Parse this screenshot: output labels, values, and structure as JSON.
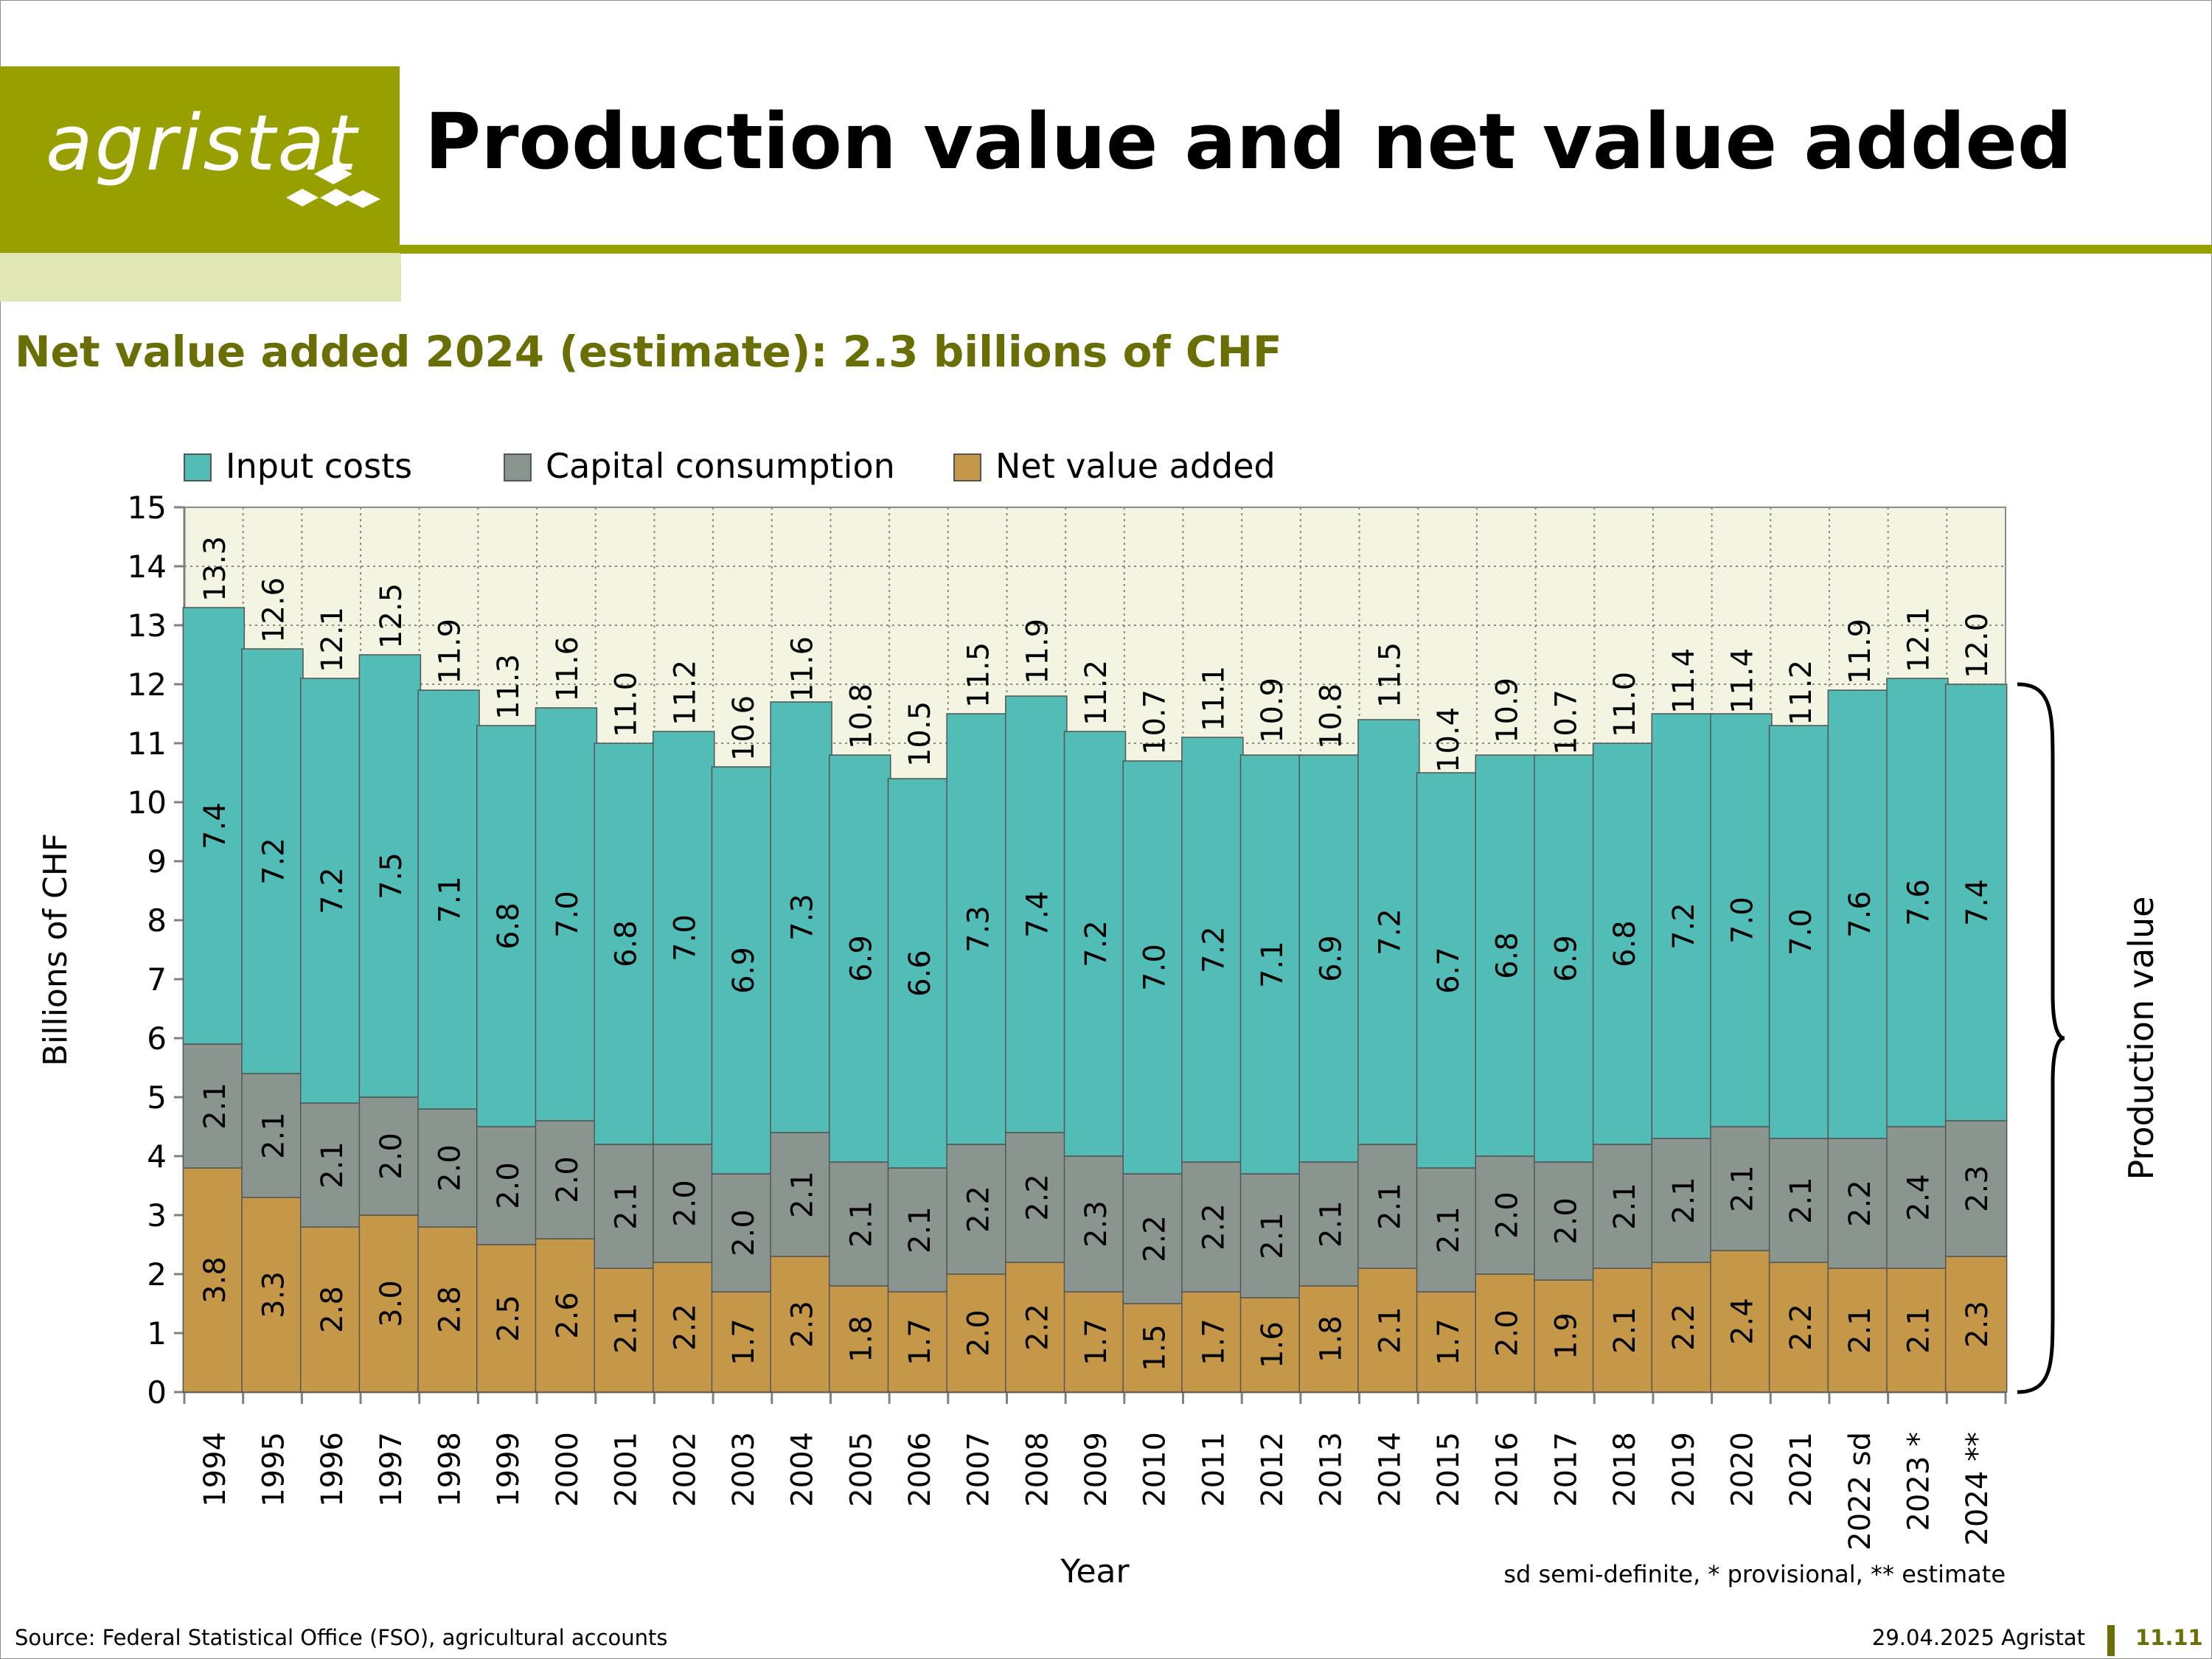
{
  "header": {
    "logo_text": "agristat",
    "title": "Production value and net value added",
    "subtitle": "Net value added 2024 (estimate): 2.3 billions of CHF"
  },
  "colors": {
    "brand": "#98a000",
    "brand_dark": "#6a6f05",
    "brand_pale": "#e0e5b4",
    "plot_background": "#f4f4e2",
    "input_costs": "#52bcb7",
    "capital_consumption": "#8b9590",
    "net_value_added": "#c59748"
  },
  "chart_data": {
    "type": "bar",
    "stacked": true,
    "ylabel": "Billions of CHF",
    "xlabel": "Year",
    "ylim": [
      0,
      15
    ],
    "yticks": [
      0,
      1,
      2,
      3,
      4,
      5,
      6,
      7,
      8,
      9,
      10,
      11,
      12,
      13,
      14,
      15
    ],
    "grid": true,
    "legend_position": "top",
    "categories": [
      "1994",
      "1995",
      "1996",
      "1997",
      "1998",
      "1999",
      "2000",
      "2001",
      "2002",
      "2003",
      "2004",
      "2005",
      "2006",
      "2007",
      "2008",
      "2009",
      "2010",
      "2011",
      "2012",
      "2013",
      "2014",
      "2015",
      "2016",
      "2017",
      "2018",
      "2019",
      "2020",
      "2021",
      "2022 sd",
      "2023 *",
      "2024 **"
    ],
    "series": [
      {
        "name": "Net value added",
        "values": [
          3.8,
          3.3,
          2.8,
          3.0,
          2.8,
          2.5,
          2.6,
          2.1,
          2.2,
          1.7,
          2.3,
          1.8,
          1.7,
          2.0,
          2.2,
          1.7,
          1.5,
          1.7,
          1.6,
          1.8,
          2.1,
          1.7,
          2.0,
          1.9,
          2.1,
          2.2,
          2.4,
          2.2,
          2.1,
          2.1,
          2.3
        ]
      },
      {
        "name": "Capital consumption",
        "values": [
          2.1,
          2.1,
          2.1,
          2.0,
          2.0,
          2.0,
          2.0,
          2.1,
          2.0,
          2.0,
          2.1,
          2.1,
          2.1,
          2.2,
          2.2,
          2.3,
          2.2,
          2.2,
          2.1,
          2.1,
          2.1,
          2.1,
          2.0,
          2.0,
          2.1,
          2.1,
          2.1,
          2.1,
          2.2,
          2.4,
          2.3
        ]
      },
      {
        "name": "Input costs",
        "values": [
          7.4,
          7.2,
          7.2,
          7.5,
          7.1,
          6.8,
          7.0,
          6.8,
          7.0,
          6.9,
          7.3,
          6.9,
          6.6,
          7.3,
          7.4,
          7.2,
          7.0,
          7.2,
          7.1,
          6.9,
          7.2,
          6.7,
          6.8,
          6.9,
          6.8,
          7.2,
          7.0,
          7.0,
          7.6,
          7.6,
          7.4
        ]
      }
    ],
    "totals": [
      13.3,
      12.6,
      12.1,
      12.5,
      11.9,
      11.3,
      11.6,
      11.0,
      11.2,
      10.6,
      11.6,
      10.8,
      10.5,
      11.5,
      11.9,
      11.2,
      10.7,
      11.1,
      10.9,
      10.8,
      11.5,
      10.4,
      10.9,
      10.7,
      11.0,
      11.4,
      11.4,
      11.2,
      11.9,
      12.1,
      12.0
    ],
    "legend": [
      "Input costs",
      "Capital consumption",
      "Net value added"
    ],
    "brace_label": "Production value",
    "note": "sd semi-definite, * provisional, ** estimate"
  },
  "footer": {
    "source": "Source: Federal Statistical Office (FSO), agricultural accounts",
    "date": "29.04.2025 Agristat",
    "page": "11.11"
  }
}
